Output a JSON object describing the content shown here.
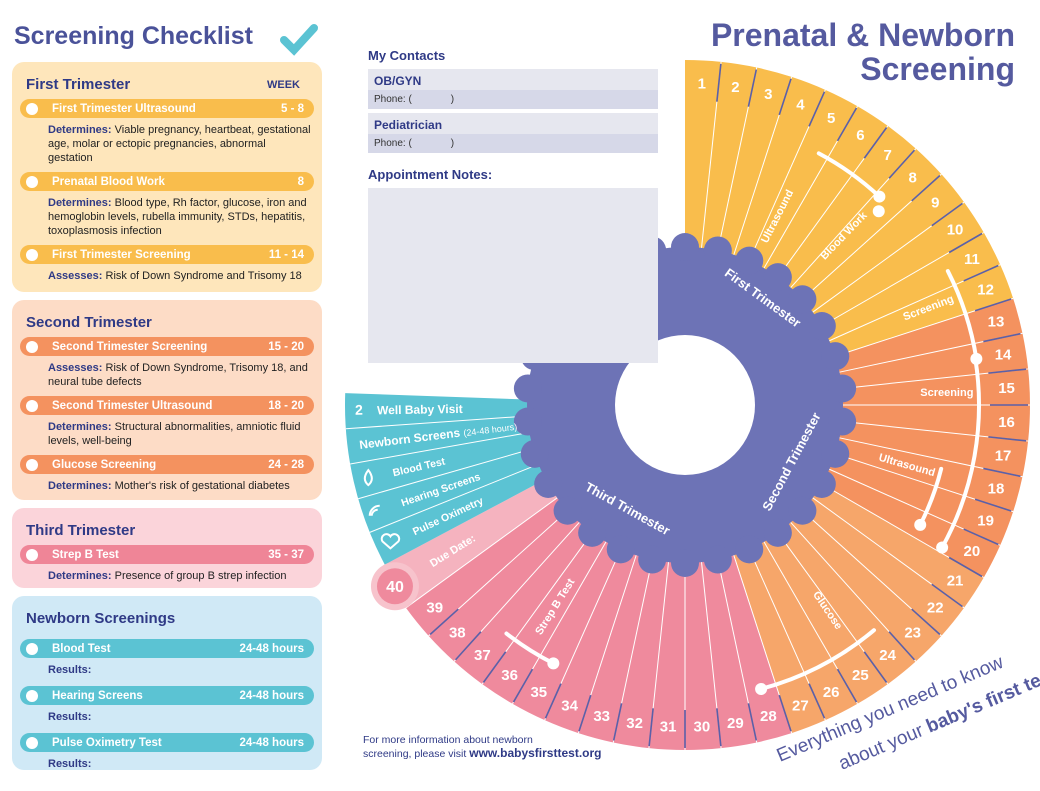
{
  "checklist": {
    "title": "Screening Checklist",
    "sections": [
      {
        "title": "First Trimester",
        "week_header": "WEEK",
        "items": [
          {
            "name": "First Trimester Ultrasound",
            "weeks": "5 - 8",
            "label": "Determines:",
            "text": "Viable pregnancy, heartbeat, gestational age, molar or ectopic pregnancies, abnormal gestation"
          },
          {
            "name": "Prenatal Blood Work",
            "weeks": "8",
            "label": "Determines:",
            "text": "Blood type, Rh factor, glucose, iron and hemoglobin levels, rubella immunity, STDs, hepatitis, toxoplasmosis infection"
          },
          {
            "name": "First Trimester Screening",
            "weeks": "11 - 14",
            "label": "Assesses:",
            "text": "Risk of Down Syndrome and Trisomy 18"
          }
        ]
      },
      {
        "title": "Second Trimester",
        "items": [
          {
            "name": "Second Trimester Screening",
            "weeks": "15 - 20",
            "label": "Assesses:",
            "text": "Risk of Down Syndrome, Trisomy 18, and neural tube defects"
          },
          {
            "name": "Second Trimester Ultrasound",
            "weeks": "18 - 20",
            "label": "Determines:",
            "text": "Structural abnormalities, amniotic fluid levels, well-being"
          },
          {
            "name": "Glucose Screening",
            "weeks": "24 - 28",
            "label": "Determines:",
            "text": "Mother's risk of gestational diabetes"
          }
        ]
      },
      {
        "title": "Third Trimester",
        "items": [
          {
            "name": "Strep B Test",
            "weeks": "35 - 37",
            "label": "Determines:",
            "text": "Presence of group B strep infection"
          }
        ]
      },
      {
        "title": "Newborn Screenings",
        "items": [
          {
            "name": "Blood Test",
            "weeks": "24-48 hours",
            "label": "Results:"
          },
          {
            "name": "Hearing Screens",
            "weeks": "24-48 hours",
            "label": "Results:"
          },
          {
            "name": "Pulse Oximetry Test",
            "weeks": "24-48 hours",
            "label": "Results:"
          }
        ]
      }
    ]
  },
  "contacts": {
    "title": "My Contacts",
    "entries": [
      {
        "label": "OB/GYN",
        "phone": "Phone: (              )"
      },
      {
        "label": "Pediatrician",
        "phone": "Phone: (              )"
      }
    ],
    "notes_title": "Appointment Notes:"
  },
  "header": {
    "line1": "Prenatal & Newborn",
    "line2": "Screening"
  },
  "wheel": {
    "weeks": [
      1,
      2,
      3,
      4,
      5,
      6,
      7,
      8,
      9,
      10,
      11,
      12,
      13,
      14,
      15,
      16,
      17,
      18,
      19,
      20,
      21,
      22,
      23,
      24,
      25,
      26,
      27,
      28,
      29,
      30,
      31,
      32,
      33,
      34,
      35,
      36,
      37,
      38,
      39
    ],
    "trimesters": [
      "First Trimester",
      "Second Trimester",
      "Third Trimester"
    ],
    "tests": [
      "Ultrasound",
      "Blood Work",
      "Screening",
      "Screening",
      "Ultrasound",
      "Glucose",
      "Strep B Test"
    ],
    "due_label": "Due Date:",
    "due_week": 40
  },
  "newborn": {
    "visit_number": 2,
    "visit_label": "Well Baby Visit",
    "screens": "Newborn Screens",
    "screens_note": "(24-48 hours)",
    "items": [
      "Blood Test",
      "Hearing Screens",
      "Pulse Oximetry"
    ]
  },
  "footer": {
    "line1": "For more information about newborn",
    "line2": "screening, please visit",
    "url": "www.babysfirsttest.org"
  },
  "tagline": {
    "line1": "Everything you need to know",
    "line2": "about your",
    "line2_bold": "baby's first tests"
  }
}
